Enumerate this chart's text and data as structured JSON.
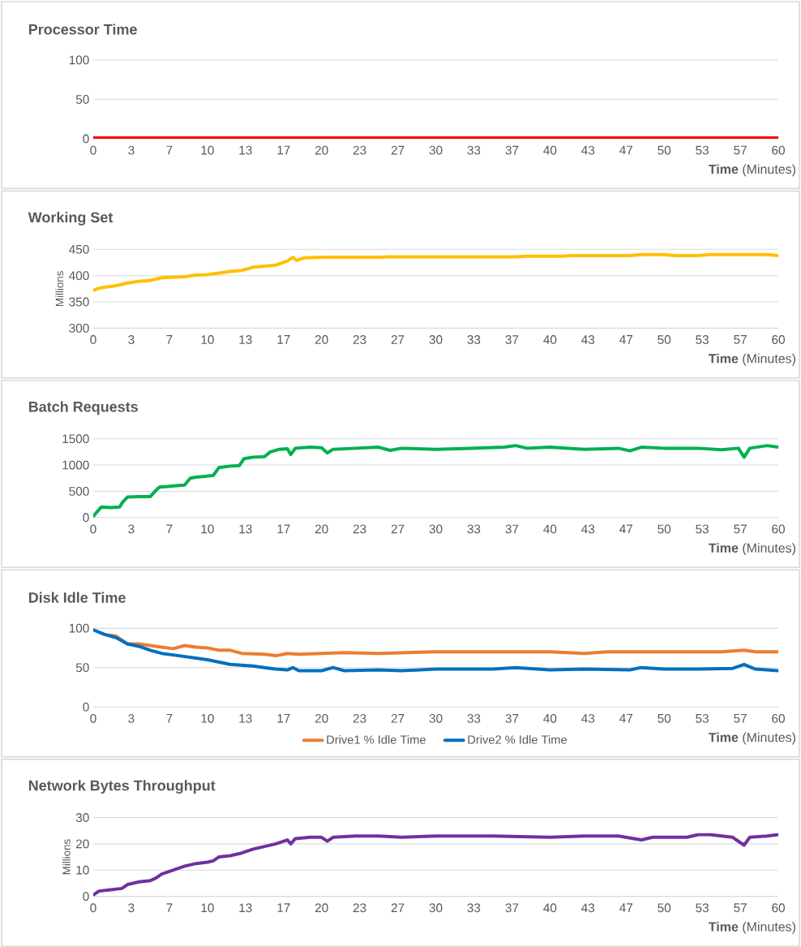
{
  "chart_data": [
    {
      "type": "line",
      "title": "Processor Time",
      "xlabel": "**Time** (Minutes)",
      "xlim": [
        0,
        60
      ],
      "ylim": [
        0,
        100
      ],
      "yticks": [
        0,
        50,
        100
      ],
      "grid": "y",
      "xticks": [
        0,
        {
          "value": 3.33,
          "label": "3"
        },
        {
          "value": 6.67,
          "label": "7"
        },
        10,
        {
          "value": 13.33,
          "label": "13"
        },
        {
          "value": 16.67,
          "label": "17"
        },
        20,
        {
          "value": 23.33,
          "label": "23"
        },
        {
          "value": 26.67,
          "label": "27"
        },
        30,
        {
          "value": 33.33,
          "label": "33"
        },
        {
          "value": 36.67,
          "label": "37"
        },
        40,
        {
          "value": 43.33,
          "label": "43"
        },
        {
          "value": 46.67,
          "label": "47"
        },
        50,
        {
          "value": 53.33,
          "label": "53"
        },
        {
          "value": 56.67,
          "label": "57"
        },
        60
      ],
      "series": [
        {
          "color": "#ff0000",
          "x": [
            0,
            5,
            10,
            15,
            20,
            25,
            30,
            35,
            40,
            45,
            50,
            55,
            60
          ],
          "values": [
            1,
            1,
            1,
            1,
            1,
            1,
            1,
            1,
            1,
            1,
            1,
            1,
            1
          ]
        }
      ]
    },
    {
      "type": "line",
      "title": "Working Set",
      "xlabel": "**Time** (Minutes)",
      "ylabel": "Millions",
      "xlim": [
        0,
        60
      ],
      "ylim": [
        300,
        450
      ],
      "yticks": [
        300,
        350,
        400,
        450
      ],
      "grid": "y",
      "xticks": [
        0,
        {
          "value": 3.33,
          "label": "3"
        },
        {
          "value": 6.67,
          "label": "7"
        },
        10,
        {
          "value": 13.33,
          "label": "13"
        },
        {
          "value": 16.67,
          "label": "17"
        },
        20,
        {
          "value": 23.33,
          "label": "23"
        },
        {
          "value": 26.67,
          "label": "27"
        },
        30,
        {
          "value": 33.33,
          "label": "33"
        },
        {
          "value": 36.67,
          "label": "37"
        },
        40,
        {
          "value": 43.33,
          "label": "43"
        },
        {
          "value": 46.67,
          "label": "47"
        },
        50,
        {
          "value": 53.33,
          "label": "53"
        },
        {
          "value": 56.67,
          "label": "57"
        },
        60
      ],
      "series": [
        {
          "color": "#ffc000",
          "x": [
            0,
            0.5,
            1,
            2,
            3,
            4,
            5,
            6,
            7,
            8,
            9,
            10,
            11,
            12,
            13,
            14,
            15,
            16,
            17,
            17.5,
            17.8,
            18.5,
            20,
            25,
            26,
            30,
            37,
            38,
            41,
            42,
            47,
            48,
            50,
            51,
            53,
            54,
            59,
            60
          ],
          "values": [
            372,
            376,
            378,
            381,
            386,
            389,
            391,
            396,
            397,
            398,
            401,
            402,
            405,
            408,
            410,
            416,
            418,
            420,
            428,
            435,
            429,
            434,
            435,
            435,
            436,
            436,
            436,
            437,
            437,
            438,
            438,
            440,
            440,
            438,
            438,
            440,
            440,
            438
          ]
        }
      ]
    },
    {
      "type": "line",
      "title": "Batch Requests",
      "xlabel": "**Time** (Minutes)",
      "xlim": [
        0,
        60
      ],
      "ylim": [
        0,
        1500
      ],
      "yticks": [
        0,
        500,
        1000,
        1500
      ],
      "grid": "y",
      "xticks": [
        0,
        {
          "value": 3.33,
          "label": "3"
        },
        {
          "value": 6.67,
          "label": "7"
        },
        10,
        {
          "value": 13.33,
          "label": "13"
        },
        {
          "value": 16.67,
          "label": "17"
        },
        20,
        {
          "value": 23.33,
          "label": "23"
        },
        {
          "value": 26.67,
          "label": "27"
        },
        30,
        {
          "value": 33.33,
          "label": "33"
        },
        {
          "value": 36.67,
          "label": "37"
        },
        40,
        {
          "value": 43.33,
          "label": "43"
        },
        {
          "value": 46.67,
          "label": "47"
        },
        50,
        {
          "value": 53.33,
          "label": "53"
        },
        {
          "value": 56.67,
          "label": "57"
        },
        60
      ],
      "series": [
        {
          "color": "#00b050",
          "x": [
            0,
            0.3,
            0.7,
            1.5,
            2.3,
            2.6,
            3,
            4,
            5,
            5.5,
            5.8,
            6.5,
            7.5,
            8,
            8.5,
            9,
            10,
            10.5,
            11,
            12,
            12.8,
            13.2,
            14,
            15,
            15.5,
            16.3,
            17,
            17.3,
            17.7,
            19,
            20,
            20.5,
            21,
            23,
            25,
            26,
            27,
            30,
            33,
            36,
            37,
            38,
            40,
            43,
            46,
            47,
            48,
            50,
            53,
            55,
            56.5,
            57,
            57.5,
            59,
            60
          ],
          "values": [
            20,
            100,
            200,
            190,
            200,
            300,
            390,
            400,
            400,
            520,
            580,
            590,
            610,
            620,
            750,
            770,
            790,
            800,
            950,
            980,
            990,
            1120,
            1150,
            1160,
            1250,
            1300,
            1310,
            1200,
            1320,
            1340,
            1330,
            1230,
            1300,
            1320,
            1340,
            1280,
            1320,
            1300,
            1320,
            1340,
            1370,
            1320,
            1340,
            1300,
            1320,
            1270,
            1340,
            1320,
            1320,
            1290,
            1320,
            1150,
            1320,
            1370,
            1340
          ]
        }
      ]
    },
    {
      "type": "line",
      "title": "Disk Idle Time",
      "xlabel": "**Time** (Minutes)",
      "xlim": [
        0,
        60
      ],
      "ylim": [
        0,
        100
      ],
      "yticks": [
        0,
        50,
        100
      ],
      "grid": "y",
      "legend": "bottom",
      "xticks": [
        0,
        {
          "value": 3.33,
          "label": "3"
        },
        {
          "value": 6.67,
          "label": "7"
        },
        10,
        {
          "value": 13.33,
          "label": "13"
        },
        {
          "value": 16.67,
          "label": "17"
        },
        20,
        {
          "value": 23.33,
          "label": "23"
        },
        {
          "value": 26.67,
          "label": "27"
        },
        30,
        {
          "value": 33.33,
          "label": "33"
        },
        {
          "value": 36.67,
          "label": "37"
        },
        40,
        {
          "value": 43.33,
          "label": "43"
        },
        {
          "value": 46.67,
          "label": "47"
        },
        50,
        {
          "value": 53.33,
          "label": "53"
        },
        {
          "value": 56.67,
          "label": "57"
        },
        60
      ],
      "series": [
        {
          "name": "Drive1 % Idle Time",
          "color": "#ed7d31",
          "x": [
            1,
            2,
            3,
            4,
            5,
            6,
            7,
            8,
            9,
            10,
            11,
            12,
            13,
            15,
            16,
            17,
            18,
            20,
            22,
            25,
            30,
            35,
            40,
            43,
            45,
            50,
            55,
            57,
            58,
            60
          ],
          "values": [
            92,
            90,
            80,
            80,
            78,
            76,
            74,
            78,
            76,
            75,
            72,
            72,
            68,
            67,
            65,
            68,
            67,
            68,
            69,
            68,
            70,
            70,
            70,
            68,
            70,
            70,
            70,
            72,
            70,
            70
          ]
        },
        {
          "name": "Drive2 % Idle Time",
          "color": "#0070c0",
          "x": [
            0,
            1,
            2,
            3,
            4,
            5,
            6,
            7,
            8,
            9,
            10,
            11,
            12,
            13,
            14,
            15,
            16,
            17,
            17.5,
            18,
            20,
            21,
            22,
            25,
            27,
            30,
            33,
            35,
            37,
            40,
            43,
            47,
            48,
            50,
            53,
            56,
            57,
            58,
            60
          ],
          "values": [
            98,
            92,
            88,
            80,
            77,
            72,
            68,
            66,
            64,
            62,
            60,
            57,
            54,
            53,
            52,
            50,
            48,
            47,
            50,
            46,
            46,
            50,
            46,
            47,
            46,
            48,
            48,
            48,
            50,
            47,
            48,
            47,
            50,
            48,
            48,
            49,
            54,
            48,
            46
          ]
        }
      ]
    },
    {
      "type": "line",
      "title": "Network Bytes Throughput",
      "xlabel": "**Time** (Minutes)",
      "ylabel": "Millions",
      "xlim": [
        0,
        60
      ],
      "ylim": [
        0,
        30
      ],
      "yticks": [
        0,
        10,
        20,
        30
      ],
      "grid": "y",
      "xticks": [
        0,
        {
          "value": 3.33,
          "label": "3"
        },
        {
          "value": 6.67,
          "label": "7"
        },
        10,
        {
          "value": 13.33,
          "label": "13"
        },
        {
          "value": 16.67,
          "label": "17"
        },
        20,
        {
          "value": 23.33,
          "label": "23"
        },
        {
          "value": 26.67,
          "label": "27"
        },
        30,
        {
          "value": 33.33,
          "label": "33"
        },
        {
          "value": 36.67,
          "label": "37"
        },
        40,
        {
          "value": 43.33,
          "label": "43"
        },
        {
          "value": 46.67,
          "label": "47"
        },
        50,
        {
          "value": 53.33,
          "label": "53"
        },
        {
          "value": 56.67,
          "label": "57"
        },
        60
      ],
      "series": [
        {
          "color": "#7030a0",
          "x": [
            0,
            0.5,
            1.5,
            2.5,
            3,
            4,
            5,
            5.5,
            6,
            7,
            8,
            9,
            10,
            10.5,
            11,
            12,
            13,
            14,
            15,
            16,
            17,
            17.3,
            17.7,
            19,
            20,
            20.5,
            21,
            23,
            25,
            27,
            30,
            35,
            40,
            43,
            46,
            48,
            49,
            52,
            53,
            54,
            56,
            57,
            57.5,
            59,
            60
          ],
          "values": [
            0.5,
            2,
            2.5,
            3,
            4.5,
            5.5,
            6,
            7,
            8.5,
            10,
            11.5,
            12.5,
            13,
            13.5,
            15,
            15.5,
            16.5,
            18,
            19,
            20,
            21.5,
            20,
            22,
            22.5,
            22.5,
            21,
            22.5,
            23,
            23,
            22.5,
            23,
            23,
            22.5,
            23,
            23,
            21.5,
            22.5,
            22.5,
            23.5,
            23.5,
            22.5,
            19.5,
            22.5,
            23,
            23.5
          ]
        }
      ]
    }
  ]
}
